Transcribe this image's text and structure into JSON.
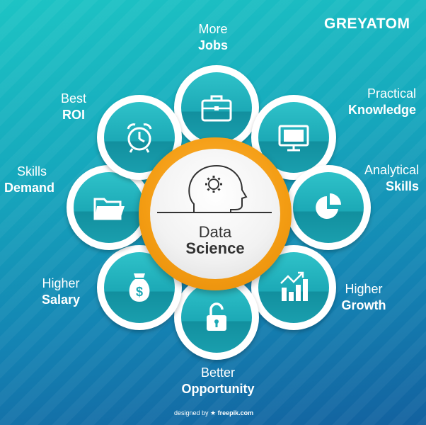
{
  "logo": {
    "text": "GREYATOM"
  },
  "center": {
    "line1": "Data",
    "line2": "Science"
  },
  "benefits": [
    {
      "id": "jobs",
      "thin": "More",
      "bold": "Jobs",
      "icon": "briefcase-icon"
    },
    {
      "id": "knowledge",
      "thin": "Practical",
      "bold": "Knowledge",
      "icon": "monitor-icon"
    },
    {
      "id": "skills",
      "thin": "Analytical",
      "bold": "Skills",
      "icon": "pie-chart-icon"
    },
    {
      "id": "growth",
      "thin": "Higher",
      "bold": "Growth",
      "icon": "bar-chart-icon"
    },
    {
      "id": "opportunity",
      "thin": "Better",
      "bold": "Opportunity",
      "icon": "unlocked-padlock-icon"
    },
    {
      "id": "salary",
      "thin": "Higher",
      "bold": "Salary",
      "icon": "money-bag-icon"
    },
    {
      "id": "demand",
      "thin": "Skills",
      "bold": "Demand",
      "icon": "folder-icon"
    },
    {
      "id": "roi",
      "thin": "Best",
      "bold": "ROI",
      "icon": "alarm-clock-icon"
    }
  ],
  "credit": {
    "prefix": "designed by",
    "brand": "freepik.com"
  },
  "colors": {
    "accent": "#f39c12",
    "teal": "#1ca9b6",
    "icon": "#ffffff"
  }
}
